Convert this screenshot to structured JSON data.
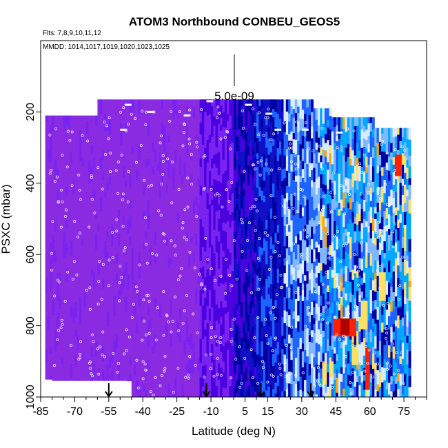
{
  "chart_data": {
    "type": "heatmap",
    "title": "ATOM3 Northbound CONBEU_GEOS5",
    "flights_label": "Flts: 7,8,9,10,11,12",
    "dates_label": "MMDD: 1014,1017,1019,1020,1023,1025",
    "xlabel": "Latitude (deg N)",
    "ylabel": "PSXC (mbar)",
    "xlim": [
      -85,
      85
    ],
    "ylim": [
      1000,
      0
    ],
    "x_ticks": [
      -85,
      -70,
      -55,
      -40,
      -25,
      -10,
      5,
      15,
      30,
      45,
      60,
      75
    ],
    "x_tick_labels": [
      "-85",
      "-70",
      "-55",
      "-40",
      "-25",
      "-10",
      "5",
      "15",
      "30",
      "45",
      "60",
      "75"
    ],
    "y_ticks": [
      200,
      400,
      600,
      800,
      1000
    ],
    "y_tick_labels": [
      "200",
      "400",
      "600",
      "800",
      "1000"
    ],
    "scale_label": "5.0e-09",
    "arrow_latitudes": [
      -55,
      -12,
      12,
      34
    ],
    "colorscale": [
      "#8a2be2",
      "#7a22f0",
      "#4b00e0",
      "#1010c8",
      "#0000a0",
      "#1e64ff",
      "#7fb8ff",
      "#d8ecff",
      "#00a8ff",
      "#ffe066",
      "#ffa500",
      "#ff2000",
      "#b00000"
    ]
  }
}
